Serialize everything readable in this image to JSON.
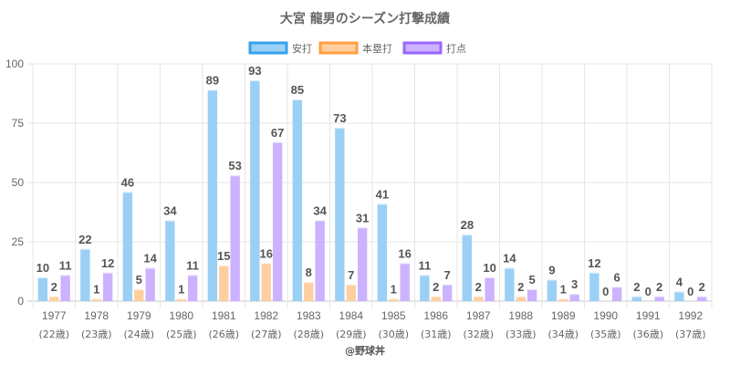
{
  "chart_data": {
    "type": "bar",
    "title": "大宮 龍男のシーズン打撃成績",
    "categories": [
      "1977",
      "1978",
      "1979",
      "1980",
      "1981",
      "1982",
      "1983",
      "1984",
      "1985",
      "1986",
      "1987",
      "1988",
      "1989",
      "1990",
      "1991",
      "1992"
    ],
    "category_sublabels": [
      "(22歳)",
      "(23歳)",
      "(24歳)",
      "(25歳)",
      "(26歳)",
      "(27歳)",
      "(28歳)",
      "(29歳)",
      "(30歳)",
      "(31歳)",
      "(32歳)",
      "(33歳)",
      "(34歳)",
      "(35歳)",
      "(36歳)",
      "(37歳)"
    ],
    "series": [
      {
        "name": "安打",
        "fill": "#9ad0f5",
        "border": "#36a2eb",
        "values": [
          10,
          22,
          46,
          34,
          89,
          93,
          85,
          73,
          41,
          11,
          28,
          14,
          9,
          12,
          2,
          4
        ]
      },
      {
        "name": "本塁打",
        "fill": "#ffcf9f",
        "border": "#ff9f40",
        "values": [
          2,
          1,
          5,
          1,
          15,
          16,
          8,
          7,
          1,
          2,
          2,
          2,
          1,
          0,
          0,
          0
        ]
      },
      {
        "name": "打点",
        "fill": "#ccb2ff",
        "border": "#9966ff",
        "values": [
          11,
          12,
          14,
          11,
          53,
          67,
          34,
          31,
          16,
          7,
          10,
          5,
          3,
          6,
          2,
          2
        ]
      }
    ],
    "xlabel": "",
    "ylabel": "",
    "ylim": [
      0,
      100
    ],
    "yticks": [
      0,
      25,
      50,
      75,
      100
    ],
    "grid": true,
    "legend": "top-center",
    "data_labels": true
  },
  "credit": "@野球丼"
}
